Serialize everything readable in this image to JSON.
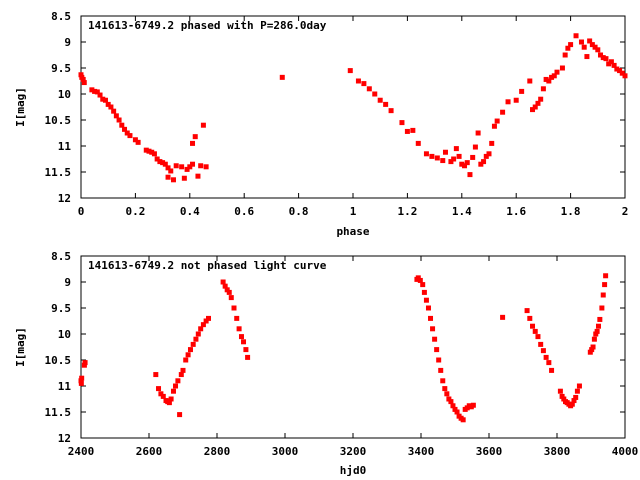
{
  "chart_data": [
    {
      "type": "scatter",
      "title": "141613-6749.2 phased with P=286.0day",
      "xlabel": "phase",
      "ylabel": "I[mag]",
      "xlim": [
        0,
        2
      ],
      "ylim": [
        12,
        8.5
      ],
      "y_inverted": true,
      "x_ticks": [
        "0",
        "0.2",
        "0.4",
        "0.6",
        "0.8",
        "1",
        "1.2",
        "1.4",
        "1.6",
        "1.8",
        "2"
      ],
      "y_ticks": [
        "8.5",
        "9",
        "9.5",
        "10",
        "10.5",
        "11",
        "11.5",
        "12"
      ],
      "marker_color": "#ff0000",
      "grid": false,
      "series": [
        {
          "points": [
            [
              0.0,
              9.63
            ],
            [
              0.003,
              9.68
            ],
            [
              0.008,
              9.72
            ],
            [
              0.012,
              9.78
            ],
            [
              0.04,
              9.92
            ],
            [
              0.05,
              9.95
            ],
            [
              0.06,
              9.96
            ],
            [
              0.07,
              10.02
            ],
            [
              0.08,
              10.1
            ],
            [
              0.09,
              10.12
            ],
            [
              0.1,
              10.2
            ],
            [
              0.11,
              10.25
            ],
            [
              0.12,
              10.33
            ],
            [
              0.13,
              10.42
            ],
            [
              0.14,
              10.5
            ],
            [
              0.15,
              10.6
            ],
            [
              0.16,
              10.68
            ],
            [
              0.17,
              10.75
            ],
            [
              0.18,
              10.8
            ],
            [
              0.2,
              10.88
            ],
            [
              0.21,
              10.93
            ],
            [
              0.24,
              11.08
            ],
            [
              0.25,
              11.1
            ],
            [
              0.26,
              11.12
            ],
            [
              0.27,
              11.15
            ],
            [
              0.28,
              11.25
            ],
            [
              0.29,
              11.3
            ],
            [
              0.3,
              11.32
            ],
            [
              0.31,
              11.35
            ],
            [
              0.32,
              11.42
            ],
            [
              0.32,
              11.6
            ],
            [
              0.33,
              11.48
            ],
            [
              0.34,
              11.65
            ],
            [
              0.35,
              11.38
            ],
            [
              0.37,
              11.4
            ],
            [
              0.38,
              11.62
            ],
            [
              0.39,
              11.45
            ],
            [
              0.4,
              11.4
            ],
            [
              0.41,
              11.35
            ],
            [
              0.41,
              10.95
            ],
            [
              0.42,
              10.82
            ],
            [
              0.43,
              11.58
            ],
            [
              0.44,
              11.38
            ],
            [
              0.45,
              10.6
            ],
            [
              0.46,
              11.4
            ],
            [
              0.74,
              9.68
            ],
            [
              0.99,
              9.55
            ],
            [
              1.02,
              9.75
            ],
            [
              1.04,
              9.8
            ],
            [
              1.06,
              9.9
            ],
            [
              1.08,
              10.0
            ],
            [
              1.1,
              10.12
            ],
            [
              1.12,
              10.2
            ],
            [
              1.14,
              10.32
            ],
            [
              1.18,
              10.55
            ],
            [
              1.2,
              10.72
            ],
            [
              1.22,
              10.7
            ],
            [
              1.24,
              10.95
            ],
            [
              1.27,
              11.15
            ],
            [
              1.29,
              11.2
            ],
            [
              1.31,
              11.23
            ],
            [
              1.33,
              11.28
            ],
            [
              1.34,
              11.12
            ],
            [
              1.36,
              11.3
            ],
            [
              1.37,
              11.25
            ],
            [
              1.38,
              11.05
            ],
            [
              1.39,
              11.2
            ],
            [
              1.4,
              11.35
            ],
            [
              1.41,
              11.38
            ],
            [
              1.42,
              11.32
            ],
            [
              1.43,
              11.55
            ],
            [
              1.44,
              11.22
            ],
            [
              1.45,
              11.02
            ],
            [
              1.46,
              10.75
            ],
            [
              1.47,
              11.35
            ],
            [
              1.48,
              11.3
            ],
            [
              1.49,
              11.2
            ],
            [
              1.5,
              11.15
            ],
            [
              1.51,
              10.95
            ],
            [
              1.52,
              10.62
            ],
            [
              1.53,
              10.52
            ],
            [
              1.55,
              10.35
            ],
            [
              1.57,
              10.15
            ],
            [
              1.6,
              10.12
            ],
            [
              1.62,
              9.95
            ],
            [
              1.65,
              9.75
            ],
            [
              1.66,
              10.3
            ],
            [
              1.67,
              10.25
            ],
            [
              1.68,
              10.18
            ],
            [
              1.69,
              10.1
            ],
            [
              1.7,
              9.9
            ],
            [
              1.71,
              9.72
            ],
            [
              1.72,
              9.75
            ],
            [
              1.73,
              9.68
            ],
            [
              1.74,
              9.65
            ],
            [
              1.75,
              9.58
            ],
            [
              1.77,
              9.5
            ],
            [
              1.78,
              9.25
            ],
            [
              1.79,
              9.12
            ],
            [
              1.8,
              9.05
            ],
            [
              1.82,
              8.88
            ],
            [
              1.84,
              9.0
            ],
            [
              1.85,
              9.1
            ],
            [
              1.86,
              9.28
            ],
            [
              1.87,
              8.98
            ],
            [
              1.88,
              9.05
            ],
            [
              1.89,
              9.1
            ],
            [
              1.9,
              9.15
            ],
            [
              1.91,
              9.25
            ],
            [
              1.92,
              9.3
            ],
            [
              1.93,
              9.32
            ],
            [
              1.94,
              9.42
            ],
            [
              1.95,
              9.38
            ],
            [
              1.96,
              9.45
            ],
            [
              1.97,
              9.52
            ],
            [
              1.98,
              9.55
            ],
            [
              1.99,
              9.6
            ],
            [
              2.0,
              9.65
            ]
          ]
        }
      ]
    },
    {
      "type": "scatter",
      "title": "141613-6749.2 not phased light curve",
      "xlabel": "hjd0",
      "ylabel": "I[mag]",
      "xlim": [
        2400,
        4000
      ],
      "ylim": [
        12,
        8.5
      ],
      "y_inverted": true,
      "x_ticks": [
        "2400",
        "2600",
        "2800",
        "3000",
        "3200",
        "3400",
        "3600",
        "3800",
        "4000"
      ],
      "y_ticks": [
        "8.5",
        "9",
        "9.5",
        "10",
        "10.5",
        "11",
        "11.5",
        "12"
      ],
      "marker_color": "#ff0000",
      "grid": false,
      "series": [
        {
          "points": [
            [
              2400,
              10.9
            ],
            [
              2401,
              10.95
            ],
            [
              2402,
              10.85
            ],
            [
              2410,
              10.6
            ],
            [
              2412,
              10.55
            ],
            [
              2620,
              10.78
            ],
            [
              2628,
              11.05
            ],
            [
              2635,
              11.15
            ],
            [
              2642,
              11.2
            ],
            [
              2650,
              11.28
            ],
            [
              2655,
              11.3
            ],
            [
              2660,
              11.32
            ],
            [
              2665,
              11.25
            ],
            [
              2672,
              11.1
            ],
            [
              2678,
              11.0
            ],
            [
              2685,
              10.9
            ],
            [
              2690,
              11.55
            ],
            [
              2695,
              10.78
            ],
            [
              2700,
              10.7
            ],
            [
              2708,
              10.5
            ],
            [
              2715,
              10.4
            ],
            [
              2722,
              10.3
            ],
            [
              2730,
              10.2
            ],
            [
              2738,
              10.1
            ],
            [
              2745,
              10.0
            ],
            [
              2752,
              9.9
            ],
            [
              2760,
              9.82
            ],
            [
              2768,
              9.75
            ],
            [
              2775,
              9.7
            ],
            [
              2818,
              9.0
            ],
            [
              2824,
              9.08
            ],
            [
              2830,
              9.15
            ],
            [
              2836,
              9.2
            ],
            [
              2842,
              9.3
            ],
            [
              2850,
              9.5
            ],
            [
              2858,
              9.7
            ],
            [
              2865,
              9.9
            ],
            [
              2872,
              10.05
            ],
            [
              2878,
              10.15
            ],
            [
              2885,
              10.3
            ],
            [
              2890,
              10.45
            ],
            [
              3388,
              8.95
            ],
            [
              3392,
              8.92
            ],
            [
              3398,
              8.97
            ],
            [
              3405,
              9.05
            ],
            [
              3410,
              9.2
            ],
            [
              3416,
              9.35
            ],
            [
              3422,
              9.5
            ],
            [
              3428,
              9.7
            ],
            [
              3434,
              9.9
            ],
            [
              3440,
              10.1
            ],
            [
              3446,
              10.3
            ],
            [
              3452,
              10.5
            ],
            [
              3458,
              10.7
            ],
            [
              3464,
              10.9
            ],
            [
              3470,
              11.05
            ],
            [
              3476,
              11.15
            ],
            [
              3482,
              11.25
            ],
            [
              3488,
              11.3
            ],
            [
              3494,
              11.38
            ],
            [
              3500,
              11.45
            ],
            [
              3506,
              11.5
            ],
            [
              3512,
              11.58
            ],
            [
              3518,
              11.62
            ],
            [
              3524,
              11.65
            ],
            [
              3530,
              11.45
            ],
            [
              3536,
              11.42
            ],
            [
              3542,
              11.38
            ],
            [
              3548,
              11.4
            ],
            [
              3554,
              11.37
            ],
            [
              3640,
              9.68
            ],
            [
              3712,
              9.55
            ],
            [
              3720,
              9.7
            ],
            [
              3728,
              9.85
            ],
            [
              3736,
              9.95
            ],
            [
              3744,
              10.05
            ],
            [
              3752,
              10.2
            ],
            [
              3760,
              10.32
            ],
            [
              3768,
              10.45
            ],
            [
              3776,
              10.55
            ],
            [
              3784,
              10.7
            ],
            [
              3810,
              11.1
            ],
            [
              3815,
              11.2
            ],
            [
              3820,
              11.25
            ],
            [
              3825,
              11.3
            ],
            [
              3830,
              11.32
            ],
            [
              3835,
              11.35
            ],
            [
              3840,
              11.38
            ],
            [
              3845,
              11.35
            ],
            [
              3850,
              11.28
            ],
            [
              3855,
              11.22
            ],
            [
              3860,
              11.1
            ],
            [
              3866,
              11.0
            ],
            [
              3898,
              10.35
            ],
            [
              3902,
              10.3
            ],
            [
              3906,
              10.25
            ],
            [
              3910,
              10.1
            ],
            [
              3914,
              10.0
            ],
            [
              3918,
              9.95
            ],
            [
              3922,
              9.85
            ],
            [
              3926,
              9.72
            ],
            [
              3932,
              9.5
            ],
            [
              3936,
              9.25
            ],
            [
              3940,
              9.05
            ],
            [
              3943,
              8.88
            ]
          ]
        }
      ]
    }
  ]
}
